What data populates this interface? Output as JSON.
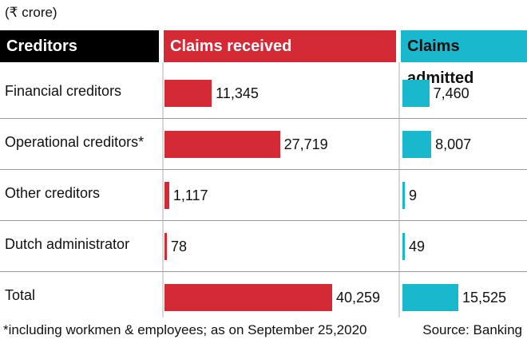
{
  "unit_note": "(₹ crore)",
  "headers": {
    "creditors": "Creditors",
    "received": "Claims received",
    "admitted": "Claims admitted"
  },
  "colors": {
    "received": "#d42a36",
    "admitted": "#1ab8cc"
  },
  "chart_data": {
    "type": "bar",
    "unit": "₹ crore",
    "categories": [
      "Financial creditors",
      "Operational creditors*",
      "Other creditors",
      "Dutch administrator",
      "Total"
    ],
    "series": [
      {
        "name": "Claims received",
        "values": [
          11345,
          27719,
          1117,
          78,
          40259
        ],
        "labels": [
          "11,345",
          "27,719",
          "1,117",
          "78",
          "40,259"
        ]
      },
      {
        "name": "Claims admitted",
        "values": [
          7460,
          8007,
          9,
          49,
          15525
        ],
        "labels": [
          "7,460",
          "8,007",
          "9",
          "49",
          "15,525"
        ]
      }
    ]
  },
  "footnote": "*including workmen & employees; as on September 25,2020",
  "source": "Source: Banking"
}
